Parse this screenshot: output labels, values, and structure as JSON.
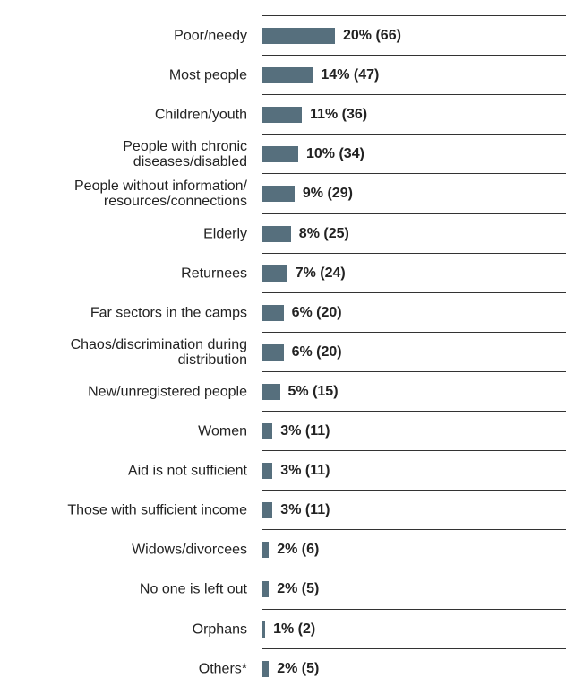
{
  "chart_data": {
    "type": "bar",
    "orientation": "horizontal",
    "color": "#566f7d",
    "categories": [
      "Poor/needy",
      "Most people",
      "Children/youth",
      "People with chronic\ndiseases/disabled",
      "People without information/\nresources/connections",
      "Elderly",
      "Returnees",
      "Far sectors in the camps",
      "Chaos/discrimination during\ndistribution",
      "New/unregistered people",
      "Women",
      "Aid is not sufficient",
      "Those with sufficient income",
      "Widows/divorcees",
      "No one is left out",
      "Orphans",
      "Others*"
    ],
    "values": [
      20,
      14,
      11,
      10,
      9,
      8,
      7,
      6,
      6,
      5,
      3,
      3,
      3,
      2,
      2,
      1,
      2
    ],
    "value_labels": [
      "20% (66)",
      "14% (47)",
      "11% (36)",
      "10% (34)",
      "9% (29)",
      "8% (25)",
      "7% (24)",
      "6% (20)",
      "6% (20)",
      "5% (15)",
      "3% (11)",
      "3% (11)",
      "3% (11)",
      "2% (6)",
      "2% (5)",
      "1% (2)",
      "2% (5)"
    ]
  }
}
